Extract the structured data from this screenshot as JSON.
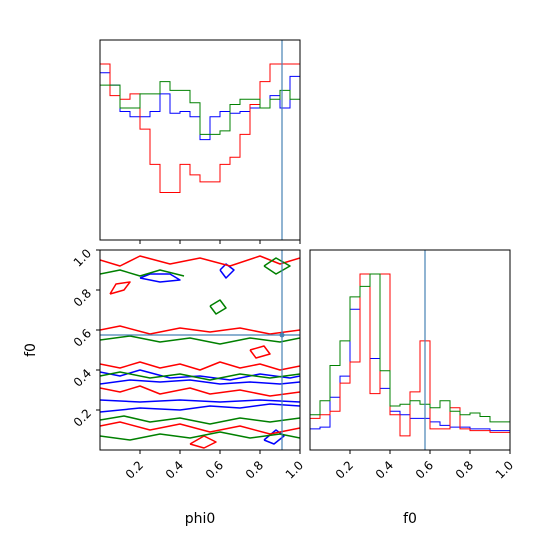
{
  "chart_data": {
    "type": "corner",
    "parameters": [
      "phi0",
      "f0"
    ],
    "truth": {
      "phi0": 0.91,
      "f0": 0.575
    },
    "truth_color": "#4682b4",
    "series": [
      {
        "color": "#0000ff"
      },
      {
        "color": "#ff0000"
      },
      {
        "color": "#008000"
      }
    ],
    "phi0_hist": {
      "type": "step-histogram",
      "bin_edges": [
        0,
        0.05,
        0.1,
        0.15,
        0.2,
        0.25,
        0.3,
        0.35,
        0.4,
        0.45,
        0.5,
        0.55,
        0.6,
        0.65,
        0.7,
        0.75,
        0.8,
        0.85,
        0.9,
        0.95,
        1.0
      ],
      "counts": [
        [
          0.95,
          0.88,
          0.73,
          0.7,
          0.7,
          0.73,
          0.83,
          0.72,
          0.73,
          0.7,
          0.57,
          0.7,
          0.73,
          0.72,
          0.73,
          0.75,
          0.75,
          0.82,
          0.75,
          0.93
        ],
        [
          1.0,
          0.82,
          0.8,
          0.83,
          0.63,
          0.43,
          0.27,
          0.27,
          0.43,
          0.37,
          0.33,
          0.33,
          0.43,
          0.47,
          0.6,
          0.77,
          0.9,
          1.0,
          1.0,
          1.0
        ],
        [
          0.88,
          0.88,
          0.75,
          0.75,
          0.83,
          0.83,
          0.9,
          0.85,
          0.85,
          0.78,
          0.6,
          0.6,
          0.62,
          0.77,
          0.8,
          0.8,
          0.75,
          0.8,
          0.85,
          0.8
        ]
      ]
    },
    "f0_hist": {
      "type": "step-histogram",
      "xlim": [
        0,
        1
      ],
      "bin_edges": [
        0,
        0.05,
        0.1,
        0.15,
        0.2,
        0.25,
        0.3,
        0.35,
        0.4,
        0.45,
        0.5,
        0.55,
        0.6,
        0.65,
        0.7,
        0.75,
        0.8,
        0.85,
        0.9,
        0.95,
        1.0
      ],
      "counts": [
        [
          0.12,
          0.13,
          0.3,
          0.42,
          0.8,
          1.0,
          0.52,
          0.35,
          0.22,
          0.2,
          0.18,
          0.18,
          0.16,
          0.14,
          0.13,
          0.13,
          0.12,
          0.12,
          0.11,
          0.11
        ],
        [
          0.18,
          0.2,
          0.22,
          0.38,
          0.5,
          1.0,
          0.32,
          1.0,
          0.2,
          0.08,
          0.33,
          0.62,
          0.12,
          0.12,
          0.24,
          0.12,
          0.11,
          0.11,
          0.1,
          0.1
        ],
        [
          0.2,
          0.28,
          0.48,
          0.62,
          0.87,
          0.93,
          1.0,
          0.45,
          0.25,
          0.26,
          0.28,
          0.26,
          0.24,
          0.28,
          0.22,
          0.2,
          0.21,
          0.19,
          0.16,
          0.16
        ]
      ]
    },
    "contour": {
      "type": "contour",
      "xlim": [
        0,
        1
      ],
      "ylim": [
        0,
        1
      ],
      "bands": [
        {
          "series": 0,
          "paths": [
            [
              [
                0.0,
                0.39
              ],
              [
                0.1,
                0.37
              ],
              [
                0.2,
                0.4
              ],
              [
                0.35,
                0.36
              ],
              [
                0.5,
                0.37
              ],
              [
                0.65,
                0.35
              ],
              [
                0.8,
                0.38
              ],
              [
                0.95,
                0.36
              ],
              [
                1.0,
                0.37
              ]
            ],
            [
              [
                0.0,
                0.33
              ],
              [
                0.15,
                0.35
              ],
              [
                0.3,
                0.34
              ],
              [
                0.45,
                0.35
              ],
              [
                0.6,
                0.33
              ],
              [
                0.75,
                0.34
              ],
              [
                0.9,
                0.33
              ],
              [
                1.0,
                0.34
              ]
            ],
            [
              [
                0.0,
                0.19
              ],
              [
                0.2,
                0.21
              ],
              [
                0.4,
                0.2
              ],
              [
                0.55,
                0.22
              ],
              [
                0.7,
                0.21
              ],
              [
                0.85,
                0.23
              ],
              [
                1.0,
                0.22
              ]
            ],
            [
              [
                0.0,
                0.25
              ],
              [
                0.2,
                0.24
              ],
              [
                0.4,
                0.25
              ],
              [
                0.6,
                0.24
              ],
              [
                0.8,
                0.25
              ],
              [
                1.0,
                0.24
              ]
            ],
            [
              [
                0.2,
                0.86
              ],
              [
                0.3,
                0.84
              ],
              [
                0.4,
                0.85
              ],
              [
                0.35,
                0.88
              ],
              [
                0.25,
                0.88
              ],
              [
                0.2,
                0.86
              ]
            ],
            [
              [
                0.82,
                0.05
              ],
              [
                0.87,
                0.03
              ],
              [
                0.92,
                0.07
              ],
              [
                0.88,
                0.1
              ],
              [
                0.82,
                0.05
              ]
            ],
            [
              [
                0.6,
                0.9
              ],
              [
                0.63,
                0.86
              ],
              [
                0.67,
                0.9
              ],
              [
                0.63,
                0.93
              ],
              [
                0.6,
                0.9
              ]
            ]
          ]
        },
        {
          "series": 1,
          "paths": [
            [
              [
                0.0,
                0.43
              ],
              [
                0.1,
                0.41
              ],
              [
                0.2,
                0.44
              ],
              [
                0.3,
                0.41
              ],
              [
                0.4,
                0.43
              ],
              [
                0.5,
                0.4
              ],
              [
                0.6,
                0.44
              ],
              [
                0.7,
                0.41
              ],
              [
                0.8,
                0.43
              ],
              [
                0.9,
                0.4
              ],
              [
                1.0,
                0.42
              ]
            ],
            [
              [
                0.0,
                0.31
              ],
              [
                0.1,
                0.29
              ],
              [
                0.2,
                0.32
              ],
              [
                0.3,
                0.28
              ],
              [
                0.45,
                0.31
              ],
              [
                0.55,
                0.28
              ],
              [
                0.7,
                0.3
              ],
              [
                0.85,
                0.27
              ],
              [
                1.0,
                0.29
              ]
            ],
            [
              [
                0.0,
                0.6
              ],
              [
                0.1,
                0.62
              ],
              [
                0.25,
                0.58
              ],
              [
                0.4,
                0.61
              ],
              [
                0.55,
                0.59
              ],
              [
                0.7,
                0.61
              ],
              [
                0.85,
                0.58
              ],
              [
                1.0,
                0.6
              ]
            ],
            [
              [
                0.0,
                0.95
              ],
              [
                0.1,
                0.92
              ],
              [
                0.2,
                0.97
              ],
              [
                0.35,
                0.93
              ],
              [
                0.5,
                0.96
              ],
              [
                0.65,
                0.92
              ],
              [
                0.8,
                0.97
              ],
              [
                0.9,
                0.93
              ],
              [
                1.0,
                0.96
              ]
            ],
            [
              [
                0.0,
                0.12
              ],
              [
                0.1,
                0.14
              ],
              [
                0.25,
                0.1
              ],
              [
                0.4,
                0.13
              ],
              [
                0.55,
                0.09
              ],
              [
                0.7,
                0.12
              ],
              [
                0.85,
                0.08
              ],
              [
                1.0,
                0.11
              ]
            ],
            [
              [
                0.05,
                0.78
              ],
              [
                0.12,
                0.8
              ],
              [
                0.15,
                0.84
              ],
              [
                0.08,
                0.83
              ],
              [
                0.05,
                0.78
              ]
            ],
            [
              [
                0.45,
                0.03
              ],
              [
                0.52,
                0.07
              ],
              [
                0.58,
                0.04
              ],
              [
                0.52,
                0.01
              ],
              [
                0.45,
                0.03
              ]
            ],
            [
              [
                0.75,
                0.5
              ],
              [
                0.82,
                0.52
              ],
              [
                0.85,
                0.48
              ],
              [
                0.78,
                0.46
              ],
              [
                0.75,
                0.5
              ]
            ]
          ]
        },
        {
          "series": 2,
          "paths": [
            [
              [
                0.0,
                0.37
              ],
              [
                0.1,
                0.39
              ],
              [
                0.25,
                0.36
              ],
              [
                0.4,
                0.38
              ],
              [
                0.55,
                0.35
              ],
              [
                0.7,
                0.38
              ],
              [
                0.85,
                0.36
              ],
              [
                1.0,
                0.38
              ]
            ],
            [
              [
                0.0,
                0.15
              ],
              [
                0.12,
                0.17
              ],
              [
                0.25,
                0.14
              ],
              [
                0.4,
                0.16
              ],
              [
                0.55,
                0.13
              ],
              [
                0.7,
                0.16
              ],
              [
                0.85,
                0.14
              ],
              [
                1.0,
                0.16
              ]
            ],
            [
              [
                0.0,
                0.07
              ],
              [
                0.15,
                0.05
              ],
              [
                0.3,
                0.08
              ],
              [
                0.45,
                0.06
              ],
              [
                0.6,
                0.09
              ],
              [
                0.75,
                0.06
              ],
              [
                0.9,
                0.08
              ],
              [
                1.0,
                0.06
              ]
            ],
            [
              [
                0.0,
                0.55
              ],
              [
                0.15,
                0.57
              ],
              [
                0.3,
                0.54
              ],
              [
                0.45,
                0.56
              ],
              [
                0.6,
                0.53
              ],
              [
                0.75,
                0.56
              ],
              [
                0.9,
                0.54
              ],
              [
                1.0,
                0.56
              ]
            ],
            [
              [
                0.0,
                0.88
              ],
              [
                0.1,
                0.9
              ],
              [
                0.2,
                0.87
              ],
              [
                0.3,
                0.9
              ],
              [
                0.42,
                0.87
              ]
            ],
            [
              [
                0.82,
                0.92
              ],
              [
                0.88,
                0.88
              ],
              [
                0.95,
                0.92
              ],
              [
                0.88,
                0.96
              ],
              [
                0.82,
                0.92
              ]
            ],
            [
              [
                0.55,
                0.72
              ],
              [
                0.6,
                0.75
              ],
              [
                0.63,
                0.71
              ],
              [
                0.58,
                0.68
              ],
              [
                0.55,
                0.72
              ]
            ]
          ]
        }
      ]
    },
    "x_ticks": [
      "0.2",
      "0.4",
      "0.6",
      "0.8",
      "1.0"
    ],
    "x_tick_values": [
      0.2,
      0.4,
      0.6,
      0.8,
      1.0
    ],
    "y_ticks": [
      "0.2",
      "0.4",
      "0.6",
      "0.8",
      "1.0"
    ],
    "y_tick_values": [
      0.2,
      0.4,
      0.6,
      0.8,
      1.0
    ],
    "xlabels": [
      "phi0",
      "f0"
    ],
    "ylabel": "f0"
  }
}
